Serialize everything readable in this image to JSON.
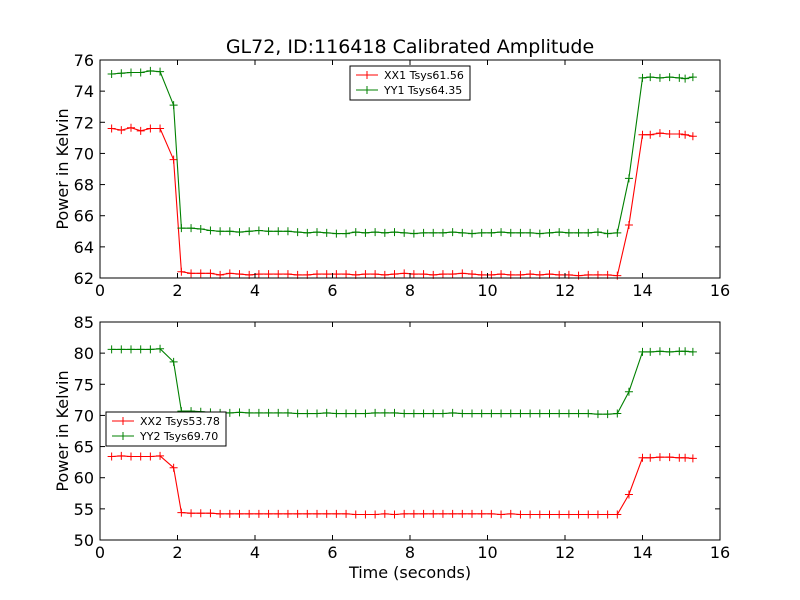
{
  "chart_data": [
    {
      "type": "line",
      "title": "GL72, ID:116418 Calibrated Amplitude",
      "xlabel": "",
      "ylabel": "Power in Kelvin",
      "xlim": [
        0,
        16
      ],
      "ylim": [
        62,
        76
      ],
      "xticks": [
        0,
        2,
        4,
        6,
        8,
        10,
        12,
        14,
        16
      ],
      "yticks": [
        62,
        64,
        66,
        68,
        70,
        72,
        74,
        76
      ],
      "grid": false,
      "legend_position": "top-center",
      "x": [
        0.3,
        0.55,
        0.8,
        1.05,
        1.3,
        1.55,
        1.9,
        2.1,
        2.35,
        2.6,
        2.85,
        3.1,
        3.35,
        3.6,
        3.85,
        4.1,
        4.35,
        4.6,
        4.85,
        5.1,
        5.35,
        5.6,
        5.85,
        6.1,
        6.35,
        6.6,
        6.85,
        7.1,
        7.35,
        7.6,
        7.85,
        8.1,
        8.35,
        8.6,
        8.85,
        9.1,
        9.35,
        9.6,
        9.85,
        10.1,
        10.35,
        10.6,
        10.85,
        11.1,
        11.35,
        11.6,
        11.85,
        12.1,
        12.35,
        12.6,
        12.85,
        13.1,
        13.35,
        13.65,
        14.0,
        14.2,
        14.45,
        14.7,
        14.95,
        15.1,
        15.3
      ],
      "series": [
        {
          "name": "XX1 Tsys61.56",
          "color": "#ff0000",
          "values": [
            71.6,
            71.5,
            71.65,
            71.45,
            71.6,
            71.6,
            69.6,
            62.4,
            62.3,
            62.3,
            62.3,
            62.2,
            62.3,
            62.25,
            62.2,
            62.25,
            62.25,
            62.25,
            62.25,
            62.2,
            62.2,
            62.25,
            62.25,
            62.25,
            62.25,
            62.2,
            62.25,
            62.25,
            62.2,
            62.25,
            62.3,
            62.25,
            62.25,
            62.2,
            62.25,
            62.25,
            62.3,
            62.25,
            62.2,
            62.2,
            62.25,
            62.2,
            62.2,
            62.25,
            62.2,
            62.25,
            62.2,
            62.2,
            62.15,
            62.2,
            62.2,
            62.2,
            62.15,
            65.4,
            71.2,
            71.2,
            71.3,
            71.25,
            71.25,
            71.2,
            71.1
          ]
        },
        {
          "name": "YY1 Tsys64.35",
          "color": "#008000",
          "values": [
            75.1,
            75.15,
            75.2,
            75.2,
            75.3,
            75.25,
            73.1,
            65.2,
            65.2,
            65.15,
            65.05,
            65.0,
            65.0,
            64.95,
            65.0,
            65.05,
            65.0,
            65.0,
            65.0,
            64.95,
            64.9,
            64.95,
            64.9,
            64.85,
            64.85,
            64.95,
            64.9,
            64.95,
            64.9,
            64.95,
            64.9,
            64.85,
            64.9,
            64.9,
            64.9,
            64.95,
            64.9,
            64.85,
            64.9,
            64.9,
            64.95,
            64.9,
            64.9,
            64.9,
            64.85,
            64.9,
            64.95,
            64.9,
            64.9,
            64.9,
            64.95,
            64.85,
            64.9,
            68.4,
            74.85,
            74.9,
            74.85,
            74.9,
            74.85,
            74.8,
            74.9
          ]
        }
      ]
    },
    {
      "type": "line",
      "title": "",
      "xlabel": "Time (seconds)",
      "ylabel": "Power in Kelvin",
      "xlim": [
        0,
        16
      ],
      "ylim": [
        50,
        85
      ],
      "xticks": [
        0,
        2,
        4,
        6,
        8,
        10,
        12,
        14,
        16
      ],
      "yticks": [
        50,
        55,
        60,
        65,
        70,
        75,
        80,
        85
      ],
      "grid": false,
      "legend_position": "center-left",
      "x": [
        0.3,
        0.55,
        0.8,
        1.05,
        1.3,
        1.55,
        1.9,
        2.1,
        2.35,
        2.6,
        2.85,
        3.1,
        3.35,
        3.6,
        3.85,
        4.1,
        4.35,
        4.6,
        4.85,
        5.1,
        5.35,
        5.6,
        5.85,
        6.1,
        6.35,
        6.6,
        6.85,
        7.1,
        7.35,
        7.6,
        7.85,
        8.1,
        8.35,
        8.6,
        8.85,
        9.1,
        9.35,
        9.6,
        9.85,
        10.1,
        10.35,
        10.6,
        10.85,
        11.1,
        11.35,
        11.6,
        11.85,
        12.1,
        12.35,
        12.6,
        12.85,
        13.1,
        13.35,
        13.65,
        14.0,
        14.2,
        14.45,
        14.7,
        14.95,
        15.1,
        15.3
      ],
      "series": [
        {
          "name": "XX2 Tsys53.78",
          "color": "#ff0000",
          "values": [
            63.4,
            63.5,
            63.4,
            63.4,
            63.4,
            63.5,
            61.6,
            54.4,
            54.3,
            54.3,
            54.3,
            54.2,
            54.2,
            54.2,
            54.2,
            54.2,
            54.2,
            54.2,
            54.2,
            54.2,
            54.2,
            54.2,
            54.2,
            54.2,
            54.2,
            54.1,
            54.1,
            54.1,
            54.2,
            54.1,
            54.2,
            54.2,
            54.2,
            54.2,
            54.2,
            54.2,
            54.2,
            54.2,
            54.2,
            54.2,
            54.1,
            54.2,
            54.1,
            54.1,
            54.1,
            54.1,
            54.1,
            54.1,
            54.1,
            54.1,
            54.1,
            54.1,
            54.1,
            57.3,
            63.2,
            63.2,
            63.3,
            63.3,
            63.2,
            63.2,
            63.1
          ]
        },
        {
          "name": "YY2 Tsys69.70",
          "color": "#008000",
          "values": [
            80.6,
            80.6,
            80.6,
            80.6,
            80.6,
            80.7,
            78.6,
            70.7,
            70.7,
            70.6,
            70.5,
            70.4,
            70.4,
            70.5,
            70.4,
            70.4,
            70.4,
            70.4,
            70.4,
            70.3,
            70.3,
            70.3,
            70.4,
            70.3,
            70.3,
            70.3,
            70.3,
            70.4,
            70.4,
            70.4,
            70.3,
            70.3,
            70.3,
            70.3,
            70.3,
            70.4,
            70.3,
            70.3,
            70.3,
            70.3,
            70.3,
            70.3,
            70.3,
            70.3,
            70.3,
            70.3,
            70.3,
            70.3,
            70.3,
            70.3,
            70.2,
            70.2,
            70.3,
            73.8,
            80.2,
            80.2,
            80.3,
            80.2,
            80.3,
            80.3,
            80.2
          ]
        }
      ]
    }
  ]
}
